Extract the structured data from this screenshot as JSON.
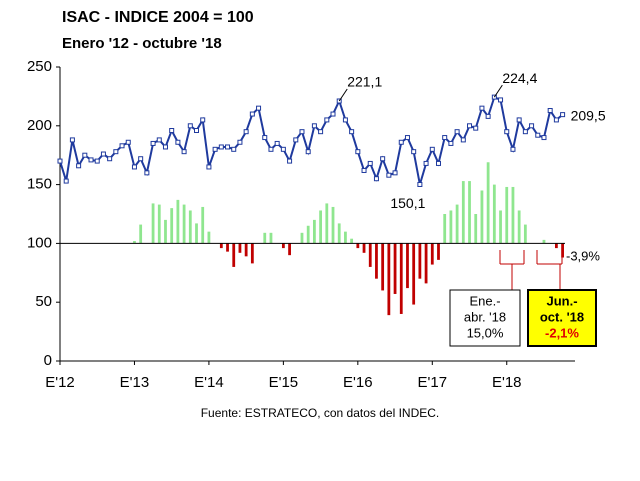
{
  "chart_data": {
    "type": "line_bar",
    "title": "ISAC - INDICE 2004 = 100",
    "subtitle": "Enero '12 - octubre '18",
    "source": "Fuente: ESTRATECO, con datos del INDEC.",
    "ylim": [
      0,
      250
    ],
    "yticks": [
      0,
      50,
      100,
      150,
      200,
      250
    ],
    "xlim": [
      0,
      83
    ],
    "xticks": [
      {
        "value": 0,
        "label": "E'12"
      },
      {
        "value": 12,
        "label": "E'13"
      },
      {
        "value": 24,
        "label": "E'14"
      },
      {
        "value": 36,
        "label": "E'15"
      },
      {
        "value": 48,
        "label": "E'16"
      },
      {
        "value": 60,
        "label": "E'17"
      },
      {
        "value": 72,
        "label": "E'18"
      }
    ],
    "baseline": 100,
    "series": [
      {
        "color": "#1f3a9e",
        "values": [
          170,
          153,
          188,
          166,
          175,
          171,
          170,
          176,
          172,
          178,
          183,
          186,
          165,
          172,
          160,
          185,
          188,
          182,
          196,
          186,
          178,
          200,
          196,
          205,
          165,
          180,
          182,
          182,
          180,
          186,
          195,
          210,
          215,
          190,
          180,
          185,
          180,
          170,
          188,
          195,
          178,
          200,
          195,
          205,
          210,
          221.1,
          205,
          195,
          178,
          162,
          168,
          155,
          172,
          158,
          160,
          186,
          190,
          178,
          150.1,
          168,
          180,
          168,
          190,
          185,
          195,
          188,
          200,
          198,
          215,
          208,
          224.4,
          222,
          195,
          180,
          205,
          195,
          200,
          192,
          190,
          213,
          205,
          209.5
        ],
        "value_labels": [
          null,
          null,
          null,
          null,
          null,
          null,
          null,
          null,
          null,
          null,
          null,
          null,
          null,
          null,
          null,
          null,
          null,
          null,
          null,
          null,
          null,
          null,
          null,
          null,
          null,
          null,
          null,
          null,
          null,
          null,
          null,
          null,
          null,
          null,
          null,
          null,
          null,
          null,
          null,
          null,
          null,
          null,
          null,
          null,
          null,
          "221,1",
          null,
          null,
          null,
          null,
          null,
          null,
          null,
          null,
          null,
          null,
          null,
          null,
          "150,1",
          null,
          null,
          null,
          null,
          null,
          null,
          null,
          null,
          null,
          null,
          null,
          "224,4",
          null,
          null,
          null,
          null,
          null,
          null,
          null,
          null,
          null,
          null,
          "209,5"
        ]
      },
      {
        "up_color": "#8fe68f",
        "down_color": "#c00000",
        "values": [
          null,
          null,
          null,
          null,
          null,
          null,
          null,
          null,
          null,
          null,
          null,
          null,
          102,
          116,
          null,
          134,
          133,
          120,
          130,
          137,
          133,
          128,
          117,
          131,
          110,
          null,
          96,
          93,
          80,
          92,
          89,
          83,
          null,
          109,
          109,
          null,
          96,
          90,
          null,
          109,
          115,
          120,
          128,
          134,
          131,
          117,
          110,
          104,
          96,
          92,
          80,
          70,
          60,
          39,
          57,
          40,
          62,
          48,
          70,
          66,
          82,
          86,
          125,
          128,
          133,
          153,
          153,
          125,
          145,
          169,
          150,
          128,
          148,
          148,
          128,
          116,
          null,
          null,
          103,
          null,
          96,
          88
        ]
      }
    ],
    "annotations": [
      {
        "text": "-3,9%"
      },
      {
        "lines": [
          "Ene.-",
          "abr. '18",
          "15,0%"
        ]
      },
      {
        "lines": [
          "Jun.-",
          "oct. '18",
          "-2,1%"
        ]
      }
    ]
  }
}
